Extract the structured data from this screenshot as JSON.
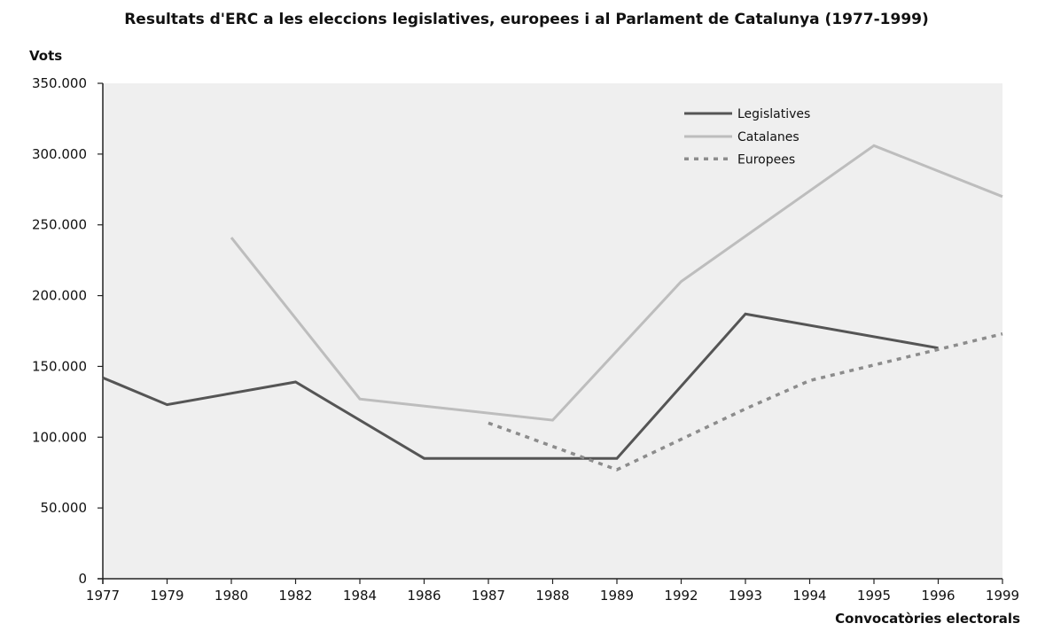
{
  "chart_data": {
    "type": "line",
    "title": "Resultats d'ERC a les eleccions legislatives, europees i al Parlament de Catalunya (1977-1999)",
    "ylabel": "Vots",
    "xlabel": "Convocatòries electorals",
    "categories": [
      "1977",
      "1979",
      "1980",
      "1982",
      "1984",
      "1986",
      "1987",
      "1988",
      "1989",
      "1992",
      "1993",
      "1994",
      "1995",
      "1996",
      "1999"
    ],
    "y_ticks": [
      "0",
      "50.000",
      "100.000",
      "150.000",
      "200.000",
      "250.000",
      "300.000",
      "350.000"
    ],
    "y_tick_values": [
      0,
      50000,
      100000,
      150000,
      200000,
      250000,
      300000,
      350000
    ],
    "ylim": [
      0,
      350000
    ],
    "grid": false,
    "legend_position": "top-right",
    "colors": {
      "plot_background": "#efefef",
      "axis": "#222222"
    },
    "series": [
      {
        "name": "Legislatives",
        "color": "#555555",
        "style": "solid",
        "values": [
          142000,
          123000,
          null,
          139000,
          null,
          85000,
          null,
          85000,
          85000,
          null,
          187000,
          null,
          null,
          163000,
          null
        ]
      },
      {
        "name": "Catalanes",
        "color": "#bdbdbd",
        "style": "solid",
        "values": [
          null,
          null,
          241000,
          null,
          127000,
          null,
          null,
          112000,
          null,
          210000,
          null,
          null,
          306000,
          null,
          270000
        ]
      },
      {
        "name": "Europees",
        "color": "#8c8c8c",
        "style": "dotted",
        "values": [
          null,
          null,
          null,
          null,
          null,
          null,
          110000,
          null,
          77000,
          null,
          120000,
          140000,
          null,
          162000,
          173000
        ]
      }
    ]
  }
}
